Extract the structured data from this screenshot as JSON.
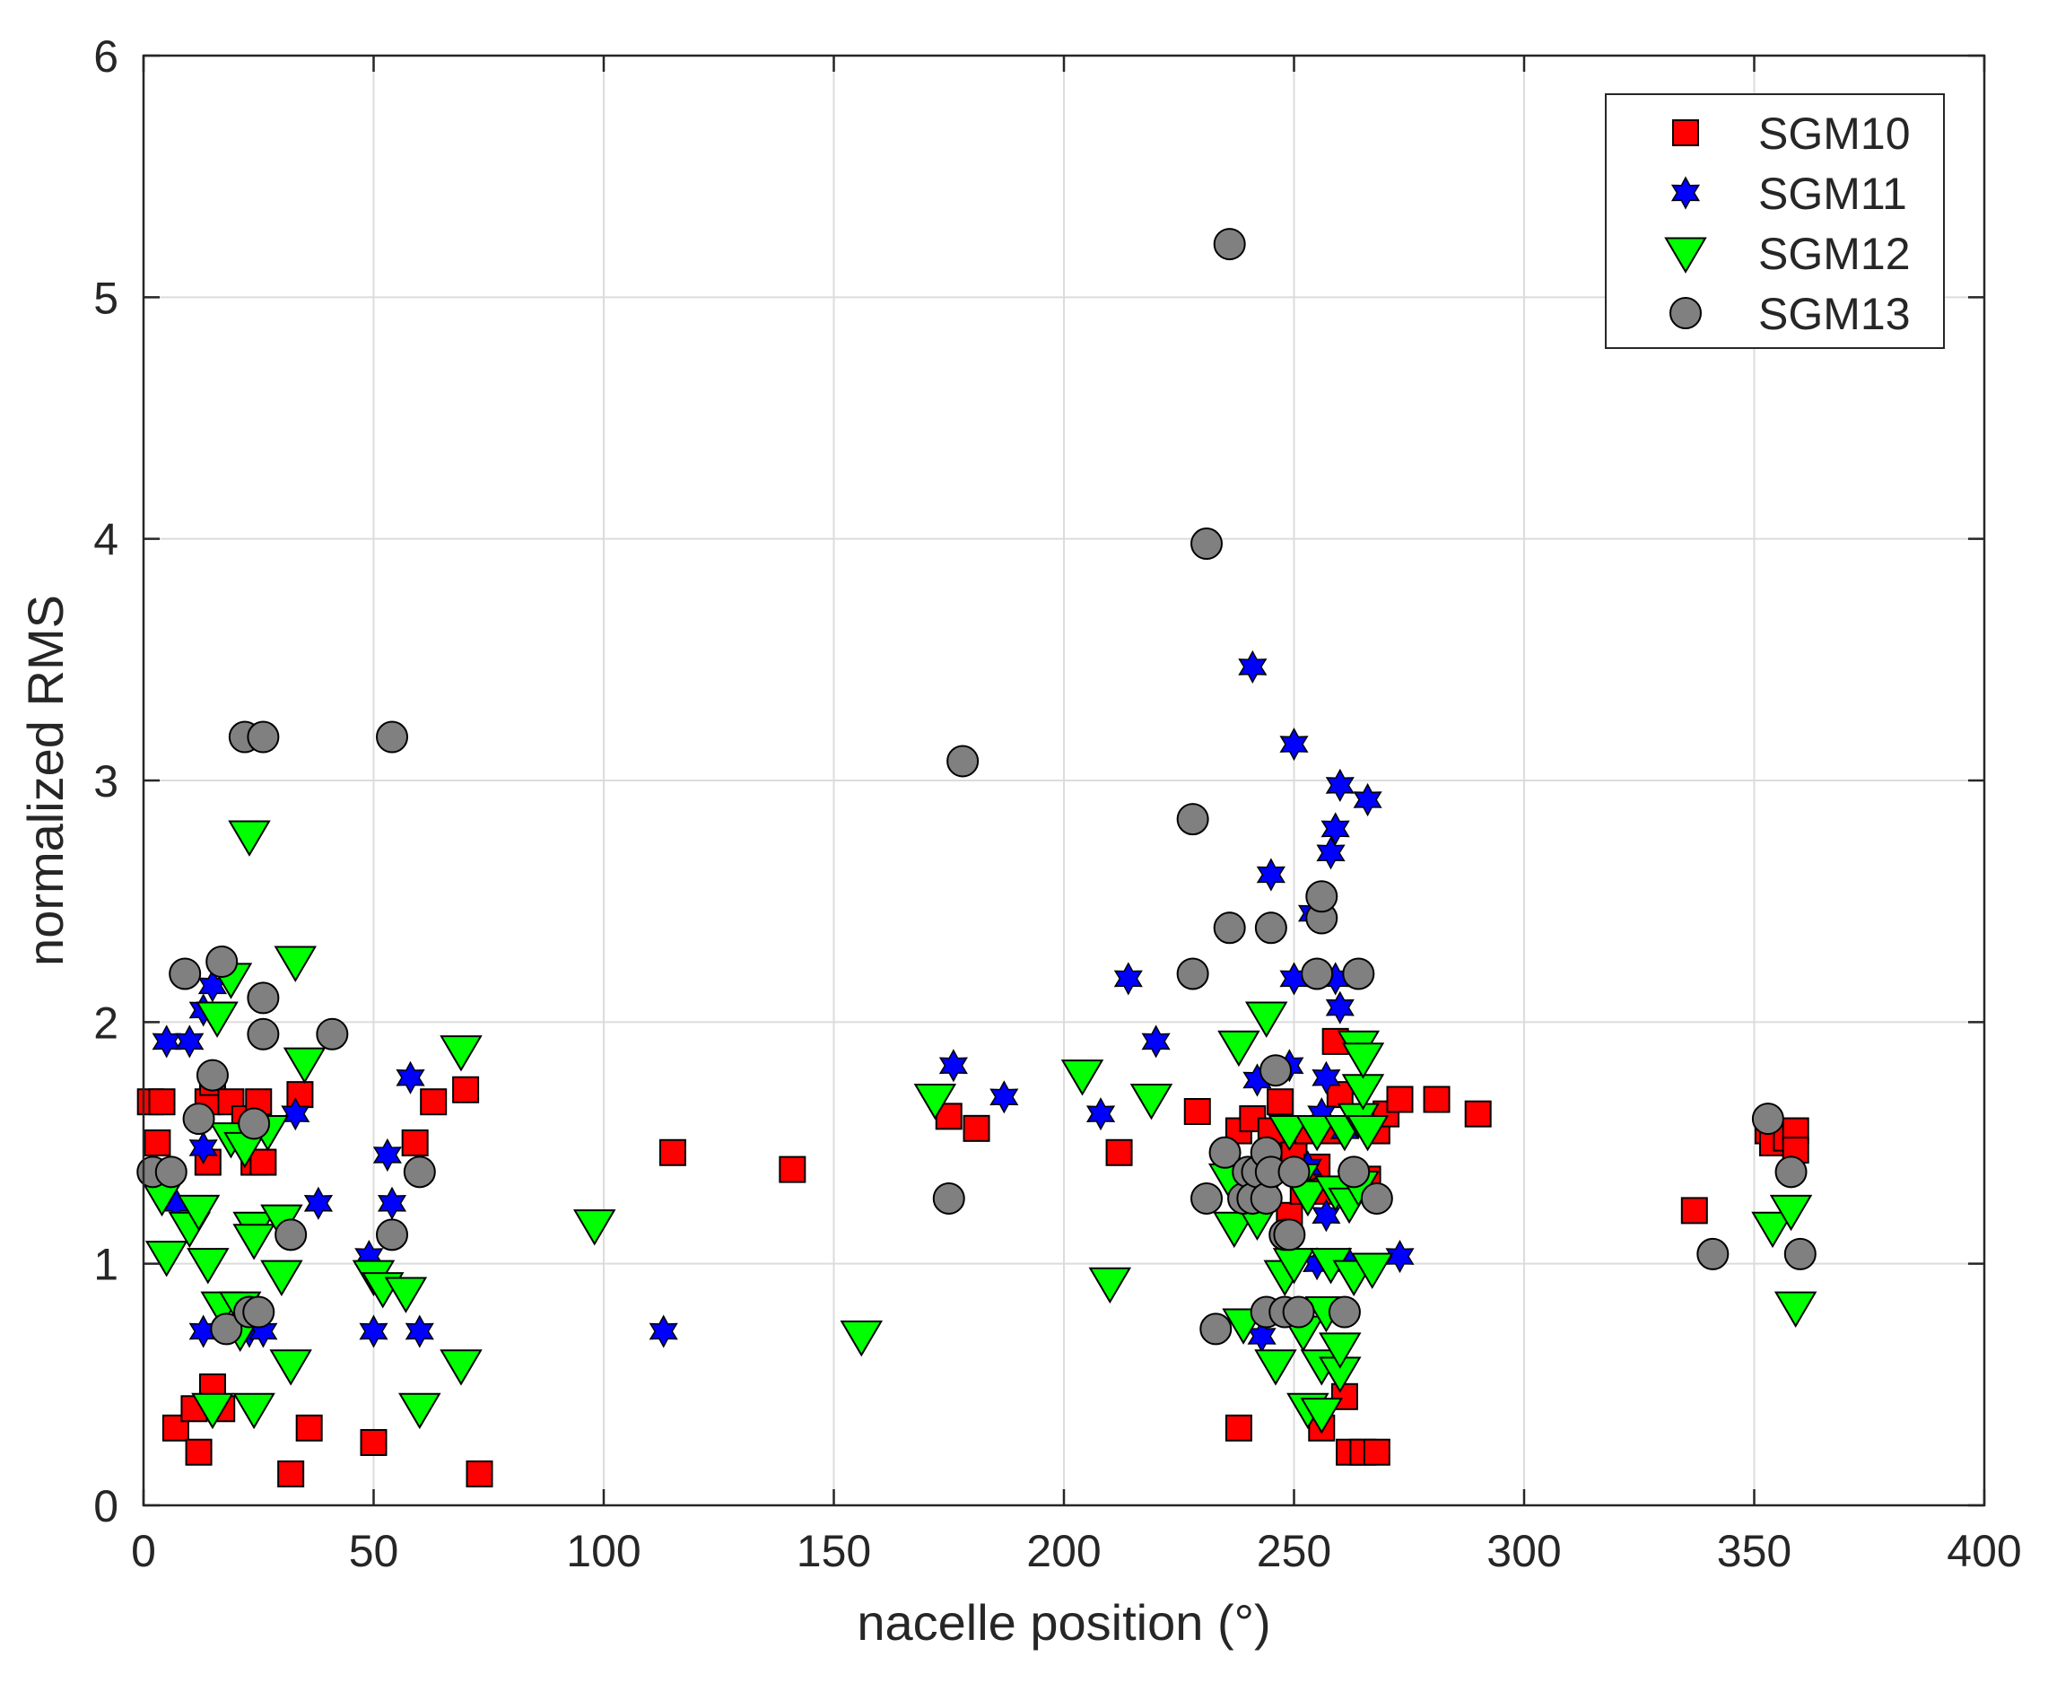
{
  "chart_data": {
    "type": "scatter",
    "xlabel": "nacelle position (°)",
    "ylabel": "normalized  RMS",
    "xlim": [
      0,
      400
    ],
    "ylim": [
      0,
      6
    ],
    "xticks": [
      0,
      50,
      100,
      150,
      200,
      250,
      300,
      350,
      400
    ],
    "yticks": [
      0,
      1,
      2,
      3,
      4,
      5,
      6
    ],
    "xtick_labels": [
      "0",
      "50",
      "100",
      "150",
      "200",
      "250",
      "300",
      "350",
      "400"
    ],
    "ytick_labels": [
      "0",
      "1",
      "2",
      "3",
      "4",
      "5",
      "6"
    ],
    "grid": true,
    "legend_position": "top-right",
    "series": [
      {
        "name": "SGM10",
        "marker": "square",
        "color": "#ff0000",
        "points": [
          [
            1.5,
            1.67
          ],
          [
            3,
            1.5
          ],
          [
            4,
            1.67
          ],
          [
            7,
            0.32
          ],
          [
            12,
            0.22
          ],
          [
            11,
            0.4
          ],
          [
            14,
            1.67
          ],
          [
            15,
            1.75
          ],
          [
            14,
            1.42
          ],
          [
            15,
            0.49
          ],
          [
            17,
            0.4
          ],
          [
            19,
            1.67
          ],
          [
            22,
            1.6
          ],
          [
            24,
            1.42
          ],
          [
            25,
            1.67
          ],
          [
            26,
            1.42
          ],
          [
            32,
            0.13
          ],
          [
            34,
            1.7
          ],
          [
            36,
            0.32
          ],
          [
            50,
            0.26
          ],
          [
            59,
            1.5
          ],
          [
            63,
            1.67
          ],
          [
            70,
            1.72
          ],
          [
            73,
            0.13
          ],
          [
            115,
            1.46
          ],
          [
            141,
            1.39
          ],
          [
            175,
            1.61
          ],
          [
            181,
            1.56
          ],
          [
            212,
            1.46
          ],
          [
            229,
            1.63
          ],
          [
            238,
            0.32
          ],
          [
            238,
            1.55
          ],
          [
            241,
            1.6
          ],
          [
            243,
            1.3
          ],
          [
            245,
            1.55
          ],
          [
            247,
            1.67
          ],
          [
            249,
            1.2
          ],
          [
            250,
            1.45
          ],
          [
            252,
            1.3
          ],
          [
            253,
            1.55
          ],
          [
            255,
            1.4
          ],
          [
            256,
            0.32
          ],
          [
            257,
            1.3
          ],
          [
            258,
            1.55
          ],
          [
            259,
            1.92
          ],
          [
            260,
            1.7
          ],
          [
            261,
            0.45
          ],
          [
            262,
            0.22
          ],
          [
            264,
            1.6
          ],
          [
            265,
            0.22
          ],
          [
            266,
            1.35
          ],
          [
            268,
            0.22
          ],
          [
            268,
            1.55
          ],
          [
            270,
            1.62
          ],
          [
            273,
            1.68
          ],
          [
            281,
            1.68
          ],
          [
            290,
            1.62
          ],
          [
            337,
            1.22
          ],
          [
            353,
            1.55
          ],
          [
            354,
            1.5
          ],
          [
            357,
            1.52
          ],
          [
            359,
            1.55
          ],
          [
            359,
            1.47
          ]
        ]
      },
      {
        "name": "SGM11",
        "marker": "hexagram",
        "color": "#0000ff",
        "points": [
          [
            5,
            1.92
          ],
          [
            7,
            1.25
          ],
          [
            10,
            1.92
          ],
          [
            13,
            0.72
          ],
          [
            13,
            1.48
          ],
          [
            13,
            2.05
          ],
          [
            15,
            2.15
          ],
          [
            23,
            0.72
          ],
          [
            26,
            0.72
          ],
          [
            33,
            1.62
          ],
          [
            38,
            1.25
          ],
          [
            49,
            1.03
          ],
          [
            50,
            0.72
          ],
          [
            53,
            1.45
          ],
          [
            54,
            1.25
          ],
          [
            58,
            1.77
          ],
          [
            60,
            0.72
          ],
          [
            113,
            0.72
          ],
          [
            176,
            1.82
          ],
          [
            187,
            1.69
          ],
          [
            208,
            1.62
          ],
          [
            214,
            2.18
          ],
          [
            220,
            1.92
          ],
          [
            241,
            3.47
          ],
          [
            242,
            1.76
          ],
          [
            243,
            0.7
          ],
          [
            244,
            1.3
          ],
          [
            245,
            2.61
          ],
          [
            249,
            1.82
          ],
          [
            250,
            2.18
          ],
          [
            250,
            3.15
          ],
          [
            253,
            1.4
          ],
          [
            254,
            2.45
          ],
          [
            255,
            1.0
          ],
          [
            256,
            1.62
          ],
          [
            257,
            1.77
          ],
          [
            257,
            1.2
          ],
          [
            258,
            2.7
          ],
          [
            259,
            2.8
          ],
          [
            259,
            2.18
          ],
          [
            260,
            2.98
          ],
          [
            260,
            2.06
          ],
          [
            261,
            1.55
          ],
          [
            262,
            1.0
          ],
          [
            263,
            1.3
          ],
          [
            266,
            2.92
          ],
          [
            273,
            1.03
          ]
        ]
      },
      {
        "name": "SGM12",
        "marker": "triangle-down",
        "color": "#00ff00",
        "points": [
          [
            4,
            1.28
          ],
          [
            5,
            1.03
          ],
          [
            10,
            1.15
          ],
          [
            12,
            1.22
          ],
          [
            14,
            1.0
          ],
          [
            15,
            0.4
          ],
          [
            16,
            2.02
          ],
          [
            17,
            0.82
          ],
          [
            19,
            2.18
          ],
          [
            19,
            1.52
          ],
          [
            21,
            0.82
          ],
          [
            21,
            0.72
          ],
          [
            22,
            1.48
          ],
          [
            23,
            2.77
          ],
          [
            24,
            1.15
          ],
          [
            24,
            1.1
          ],
          [
            24,
            0.4
          ],
          [
            27,
            1.55
          ],
          [
            30,
            1.18
          ],
          [
            30,
            0.95
          ],
          [
            32,
            0.58
          ],
          [
            33,
            2.25
          ],
          [
            35,
            1.83
          ],
          [
            50,
            0.95
          ],
          [
            52,
            0.9
          ],
          [
            57,
            0.88
          ],
          [
            60,
            0.4
          ],
          [
            69,
            1.88
          ],
          [
            69,
            0.58
          ],
          [
            98,
            1.16
          ],
          [
            156,
            0.7
          ],
          [
            172,
            1.68
          ],
          [
            204,
            1.78
          ],
          [
            210,
            0.92
          ],
          [
            219,
            1.68
          ],
          [
            236,
            1.35
          ],
          [
            237,
            1.15
          ],
          [
            238,
            1.9
          ],
          [
            239,
            0.75
          ],
          [
            242,
            1.18
          ],
          [
            244,
            2.02
          ],
          [
            246,
            0.58
          ],
          [
            248,
            0.95
          ],
          [
            249,
            1.55
          ],
          [
            250,
            1.0
          ],
          [
            251,
            1.35
          ],
          [
            252,
            0.72
          ],
          [
            253,
            0.4
          ],
          [
            253,
            1.28
          ],
          [
            255,
            1.55
          ],
          [
            256,
            0.38
          ],
          [
            256,
            0.58
          ],
          [
            257,
            0.8
          ],
          [
            258,
            1.0
          ],
          [
            259,
            1.3
          ],
          [
            260,
            0.55
          ],
          [
            260,
            0.65
          ],
          [
            261,
            1.55
          ],
          [
            262,
            1.25
          ],
          [
            263,
            0.95
          ],
          [
            264,
            1.9
          ],
          [
            264,
            1.6
          ],
          [
            264,
            1.32
          ],
          [
            265,
            1.72
          ],
          [
            265,
            1.85
          ],
          [
            266,
            1.55
          ],
          [
            267,
            0.98
          ],
          [
            354,
            1.15
          ],
          [
            358,
            1.22
          ],
          [
            359,
            0.82
          ]
        ]
      },
      {
        "name": "SGM13",
        "marker": "circle",
        "color": "#808080",
        "points": [
          [
            2,
            1.38
          ],
          [
            6,
            1.38
          ],
          [
            9,
            2.2
          ],
          [
            12,
            1.6
          ],
          [
            15,
            1.78
          ],
          [
            17,
            2.25
          ],
          [
            18,
            0.73
          ],
          [
            22,
            3.18
          ],
          [
            23,
            0.8
          ],
          [
            24,
            1.58
          ],
          [
            25,
            0.8
          ],
          [
            26,
            1.95
          ],
          [
            26,
            2.1
          ],
          [
            26,
            3.18
          ],
          [
            32,
            1.12
          ],
          [
            41,
            1.95
          ],
          [
            54,
            1.12
          ],
          [
            54,
            3.18
          ],
          [
            60,
            1.38
          ],
          [
            175,
            1.27
          ],
          [
            178,
            3.08
          ],
          [
            228,
            2.84
          ],
          [
            228,
            2.2
          ],
          [
            231,
            1.27
          ],
          [
            231,
            3.98
          ],
          [
            233,
            0.73
          ],
          [
            235,
            1.46
          ],
          [
            236,
            2.39
          ],
          [
            236,
            5.22
          ],
          [
            239,
            1.27
          ],
          [
            240,
            1.38
          ],
          [
            241,
            1.27
          ],
          [
            242,
            1.38
          ],
          [
            244,
            0.8
          ],
          [
            244,
            1.27
          ],
          [
            244,
            1.46
          ],
          [
            245,
            2.39
          ],
          [
            245,
            1.38
          ],
          [
            246,
            1.8
          ],
          [
            248,
            0.8
          ],
          [
            248,
            1.12
          ],
          [
            249,
            1.12
          ],
          [
            250,
            1.38
          ],
          [
            251,
            0.8
          ],
          [
            255,
            2.2
          ],
          [
            256,
            2.43
          ],
          [
            256,
            2.52
          ],
          [
            261,
            0.8
          ],
          [
            263,
            1.38
          ],
          [
            264,
            2.2
          ],
          [
            268,
            1.27
          ],
          [
            353,
            1.6
          ],
          [
            358,
            1.38
          ],
          [
            360,
            1.04
          ],
          [
            341,
            1.04
          ]
        ]
      }
    ]
  }
}
